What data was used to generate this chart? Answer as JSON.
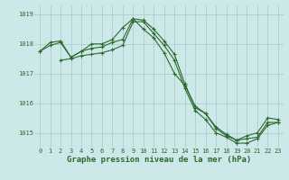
{
  "line1_x": [
    0,
    1,
    2,
    3,
    4,
    5,
    6,
    7,
    8,
    9,
    10,
    11,
    12,
    13,
    14,
    15,
    16,
    17,
    18,
    19,
    20,
    21,
    22,
    23
  ],
  "line1_y": [
    1017.75,
    1017.95,
    1018.05,
    1017.55,
    1017.75,
    1017.85,
    1017.9,
    1018.05,
    1018.15,
    1018.85,
    1018.8,
    1018.5,
    1018.1,
    1017.65,
    1016.65,
    1015.85,
    1015.65,
    1015.15,
    1014.9,
    1014.75,
    1014.8,
    1014.85,
    1015.35,
    1015.35
  ],
  "line2_x": [
    0,
    1,
    2,
    3,
    4,
    5,
    6,
    7,
    8,
    9,
    10,
    11,
    12,
    13,
    14,
    15,
    16,
    17,
    18,
    19,
    20,
    21,
    22,
    23
  ],
  "line2_y": [
    1017.75,
    1018.05,
    1018.1,
    1017.55,
    1017.75,
    1018.0,
    1018.0,
    1018.15,
    1018.55,
    1018.85,
    1018.5,
    1018.2,
    1017.7,
    1017.0,
    1016.6,
    1015.9,
    1015.65,
    1015.2,
    1014.95,
    1014.75,
    1014.9,
    1015.0,
    1015.5,
    1015.45
  ],
  "line3_x": [
    2,
    3,
    4,
    5,
    6,
    7,
    8,
    9,
    10,
    11,
    12,
    13,
    14,
    15,
    16,
    17,
    18,
    19,
    20,
    21,
    22,
    23
  ],
  "line3_y": [
    1017.45,
    1017.5,
    1017.6,
    1017.65,
    1017.7,
    1017.8,
    1017.95,
    1018.75,
    1018.75,
    1018.35,
    1017.95,
    1017.45,
    1016.5,
    1015.75,
    1015.45,
    1015.0,
    1014.85,
    1014.65,
    1014.65,
    1014.8,
    1015.25,
    1015.35
  ],
  "line_color": "#2d6a2d",
  "bg_color": "#cce8e8",
  "grid_color": "#aacece",
  "xlabel": "Graphe pression niveau de la mer (hPa)",
  "ylim": [
    1014.5,
    1019.3
  ],
  "xlim": [
    -0.5,
    23.5
  ],
  "yticks": [
    1015,
    1016,
    1017,
    1018,
    1019
  ],
  "xticks": [
    0,
    1,
    2,
    3,
    4,
    5,
    6,
    7,
    8,
    9,
    10,
    11,
    12,
    13,
    14,
    15,
    16,
    17,
    18,
    19,
    20,
    21,
    22,
    23
  ]
}
